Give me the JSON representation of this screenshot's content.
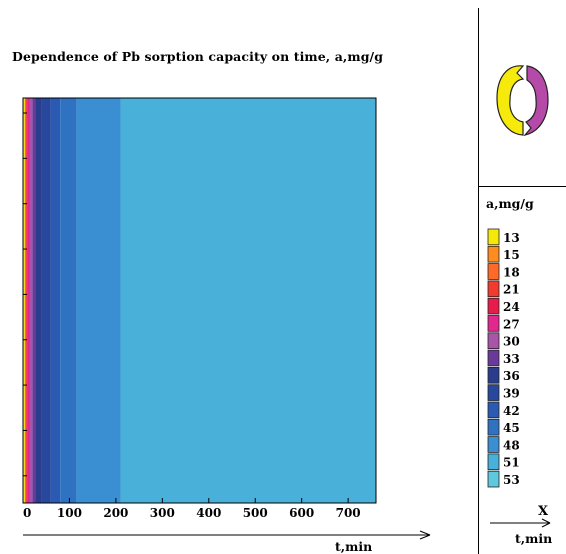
{
  "chart_data": {
    "type": "heatmap",
    "title": "Dependence of Pb sorption capacity on time, a,mg/g",
    "xlabel": "t,min",
    "xlim": [
      0,
      760
    ],
    "xticks": [
      0,
      100,
      200,
      300,
      400,
      500,
      600,
      700
    ],
    "legend": {
      "title": "a,mg/g",
      "placement": "right",
      "levels": [
        13,
        15,
        18,
        21,
        24,
        27,
        30,
        33,
        36,
        39,
        42,
        45,
        48,
        51,
        53
      ],
      "colors": [
        "#f4e90a",
        "#ff8c1f",
        "#ff6a2a",
        "#f23a2e",
        "#e81c4a",
        "#e2278f",
        "#a854a8",
        "#6a3a9a",
        "#2a3d8c",
        "#27489c",
        "#2a5ab2",
        "#2f72c2",
        "#3a8ed2",
        "#49b0da",
        "#5ec8de"
      ]
    },
    "bands": [
      {
        "t_start": 0,
        "t_end": 4,
        "value": 13
      },
      {
        "t_start": 4,
        "t_end": 7,
        "value": 18
      },
      {
        "t_start": 7,
        "t_end": 10,
        "value": 24
      },
      {
        "t_start": 10,
        "t_end": 15,
        "value": 27
      },
      {
        "t_start": 15,
        "t_end": 20,
        "value": 30
      },
      {
        "t_start": 20,
        "t_end": 27,
        "value": 33
      },
      {
        "t_start": 27,
        "t_end": 40,
        "value": 36
      },
      {
        "t_start": 40,
        "t_end": 60,
        "value": 39
      },
      {
        "t_start": 60,
        "t_end": 80,
        "value": 42
      },
      {
        "t_start": 80,
        "t_end": 115,
        "value": 45
      },
      {
        "t_start": 115,
        "t_end": 210,
        "value": 48
      },
      {
        "t_start": 210,
        "t_end": 760,
        "value": 51
      }
    ]
  },
  "right_panel": {
    "legend_title": "a,mg/g",
    "axis_letter": "X",
    "axis_label": "t,min"
  },
  "colors": {
    "logo_yellow": "#f6ea0c",
    "logo_magenta": "#b54aa8"
  },
  "icons": {
    "logo": "sorbent-granule-logo"
  }
}
